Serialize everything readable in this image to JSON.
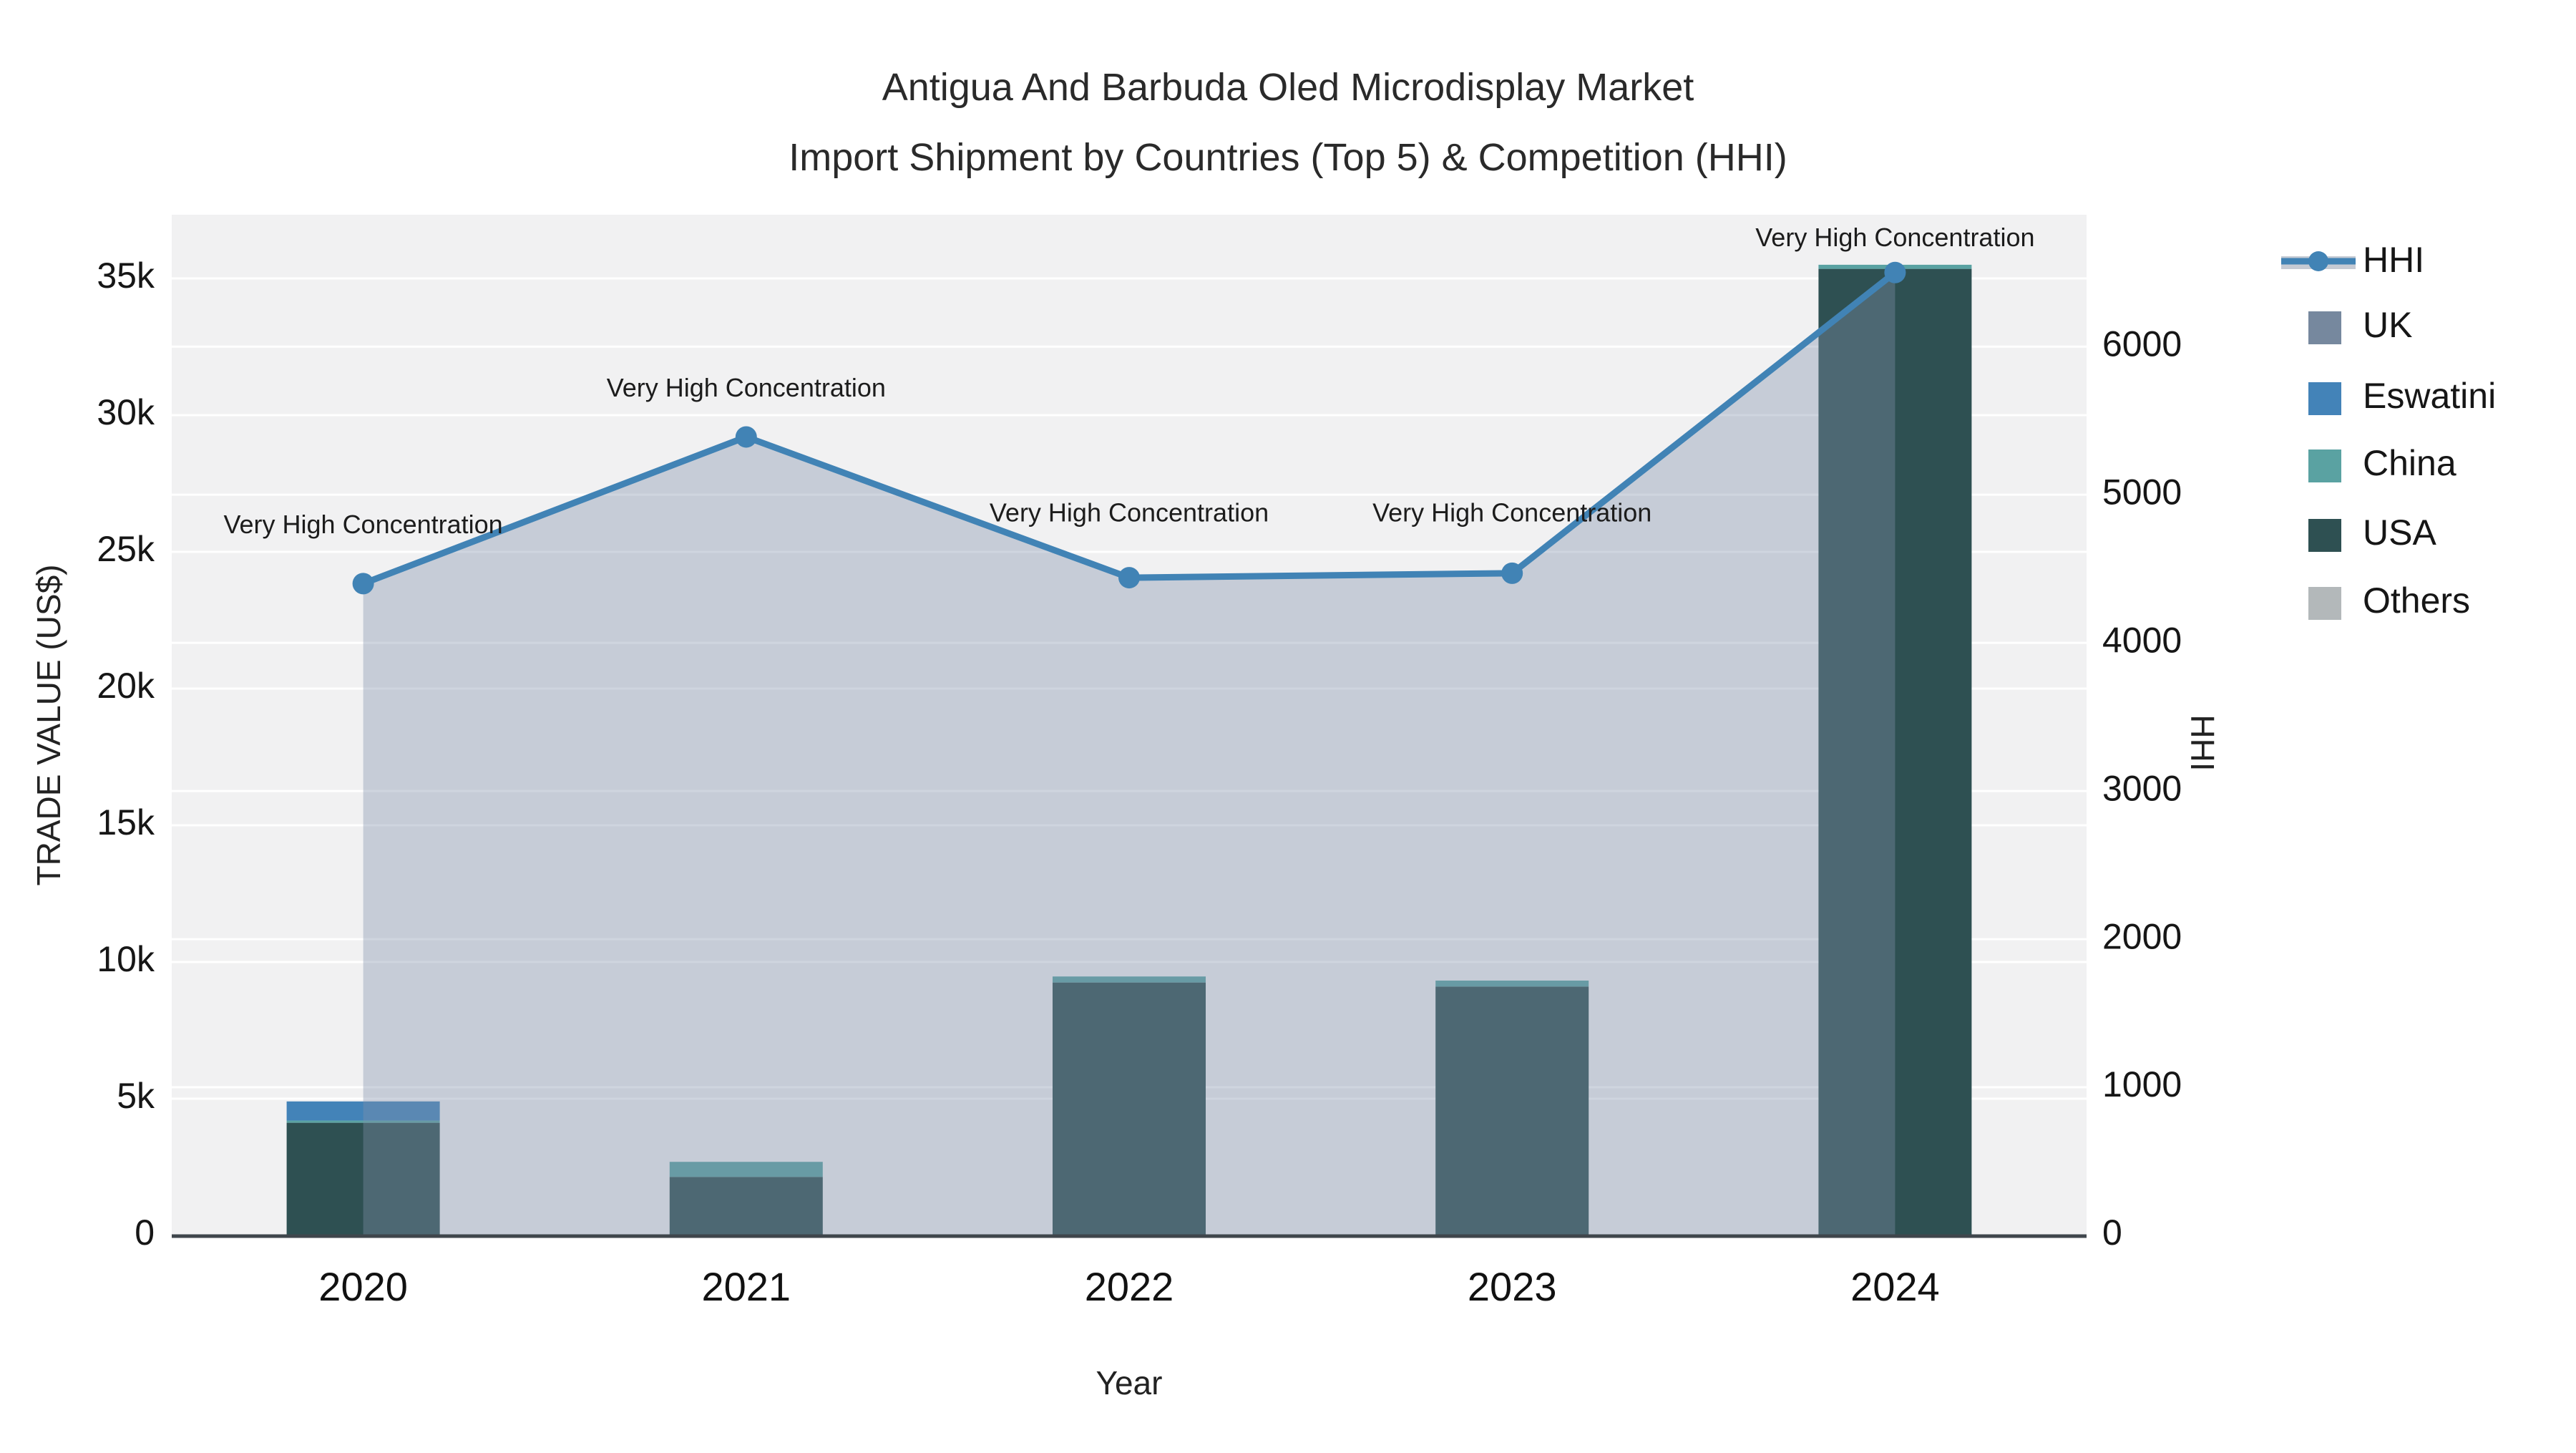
{
  "title": {
    "line1": "Antigua And Barbuda Oled Microdisplay Market",
    "line2": "Import Shipment by Countries (Top 5) & Competition (HHI)"
  },
  "axes": {
    "x_title": "Year",
    "y_left_title": "TRADE VALUE (US$)",
    "y_right_title": "HHI",
    "y_left_ticks": [
      {
        "value": 0,
        "label": "0"
      },
      {
        "value": 5000,
        "label": "5k"
      },
      {
        "value": 10000,
        "label": "10k"
      },
      {
        "value": 15000,
        "label": "15k"
      },
      {
        "value": 20000,
        "label": "20k"
      },
      {
        "value": 25000,
        "label": "25k"
      },
      {
        "value": 30000,
        "label": "30k"
      },
      {
        "value": 35000,
        "label": "35k"
      }
    ],
    "y_right_ticks": [
      {
        "value": 0,
        "label": "0"
      },
      {
        "value": 1000,
        "label": "1000"
      },
      {
        "value": 2000,
        "label": "2000"
      },
      {
        "value": 3000,
        "label": "3000"
      },
      {
        "value": 4000,
        "label": "4000"
      },
      {
        "value": 5000,
        "label": "5000"
      },
      {
        "value": 6000,
        "label": "6000"
      }
    ]
  },
  "legend": {
    "items": [
      {
        "label": "HHI",
        "color": "#4183b5",
        "type": "line"
      },
      {
        "label": "UK",
        "color": "#76889e",
        "type": "swatch"
      },
      {
        "label": "Eswatini",
        "color": "#4383b8",
        "type": "swatch"
      },
      {
        "label": "China",
        "color": "#5aa2a2",
        "type": "swatch"
      },
      {
        "label": "USA",
        "color": "#2e5052",
        "type": "swatch"
      },
      {
        "label": "Others",
        "color": "#b3b8ba",
        "type": "swatch"
      }
    ]
  },
  "colors": {
    "plot_bg": "#f1f1f2",
    "grid": "#ffffff",
    "axis_line": "#3f464c",
    "hhi_line": "#4183b5",
    "hhi_fill": "rgba(130,145,170,0.38)",
    "legend_band": "#c5cad3"
  },
  "chart_data": {
    "type": "bar+line",
    "categories": [
      "2020",
      "2021",
      "2022",
      "2023",
      "2024"
    ],
    "bar_unit": "US$",
    "bar_stack_order_note": "stacked bottom to top as listed",
    "series": [
      {
        "name": "USA",
        "color": "#2e5052",
        "values": [
          4120,
          2140,
          9250,
          9100,
          35350
        ]
      },
      {
        "name": "China",
        "color": "#5aa2a2",
        "values": [
          80,
          550,
          220,
          220,
          150
        ]
      },
      {
        "name": "Eswatini",
        "color": "#4383b8",
        "values": [
          700,
          0,
          0,
          0,
          0
        ]
      },
      {
        "name": "UK",
        "color": "#76889e",
        "values": [
          0,
          0,
          0,
          0,
          0
        ]
      },
      {
        "name": "Others",
        "color": "#b3b8ba",
        "values": [
          0,
          0,
          0,
          0,
          0
        ]
      }
    ],
    "stack_totals": [
      4900,
      2690,
      9470,
      9320,
      35500
    ],
    "line_series": {
      "name": "HHI",
      "axis": "right",
      "color": "#4183b5",
      "values": [
        4400,
        5390,
        4440,
        4470,
        6500
      ],
      "point_annotations": [
        "Very High Concentration",
        "Very High Concentration",
        "Very High Concentration",
        "Very High Concentration",
        "Very High Concentration"
      ]
    },
    "title": "Antigua And Barbuda Oled Microdisplay Market Import Shipment by Countries (Top 5) & Competition (HHI)",
    "xlabel": "Year",
    "ylabel_left": "TRADE VALUE (US$)",
    "ylabel_right": "HHI",
    "ylim_left": [
      0,
      37330
    ],
    "ylim_right": [
      0,
      6890
    ],
    "grid": true,
    "legend_position": "right"
  }
}
